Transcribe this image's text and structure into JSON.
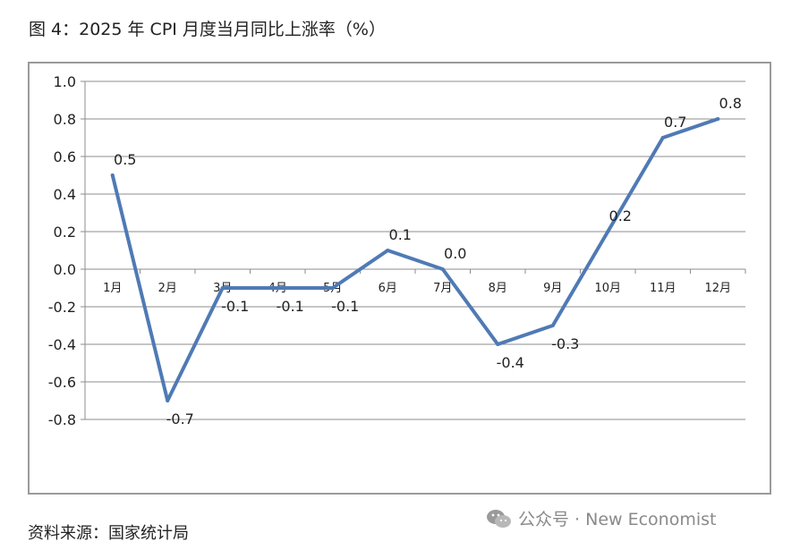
{
  "title": "图 4：2025 年 CPI 月度当月同比上涨率（%）",
  "source": "资料来源：国家统计局",
  "watermark": {
    "text": "公众号 · New Economist",
    "icon": "wechat-icon"
  },
  "chart_data": {
    "type": "line",
    "categories": [
      "1月",
      "2月",
      "3月",
      "4月",
      "5月",
      "6月",
      "7月",
      "8月",
      "9月",
      "10月",
      "11月",
      "12月"
    ],
    "series": [
      {
        "values": [
          0.5,
          -0.7,
          -0.1,
          -0.1,
          -0.1,
          0.1,
          0.0,
          -0.4,
          -0.3,
          0.2,
          0.7,
          0.8
        ],
        "labels": [
          "0.5",
          "-0.7",
          "-0.1",
          "-0.1",
          "-0.1",
          "0.1",
          "0.0",
          "-0.4",
          "-0.3",
          "0.2",
          "0.7",
          "0.8"
        ],
        "color": "#4f7ab5"
      }
    ],
    "ylim": [
      -0.8,
      1.0
    ],
    "yticks": [
      "1.0",
      "0.8",
      "0.6",
      "0.4",
      "0.2",
      "0.0",
      "-0.2",
      "-0.4",
      "-0.6",
      "-0.8"
    ],
    "grid": true,
    "xlabel": "",
    "ylabel": "",
    "colors": {
      "gridline": "#8c8c8c",
      "axis": "#8c8c8c"
    }
  }
}
